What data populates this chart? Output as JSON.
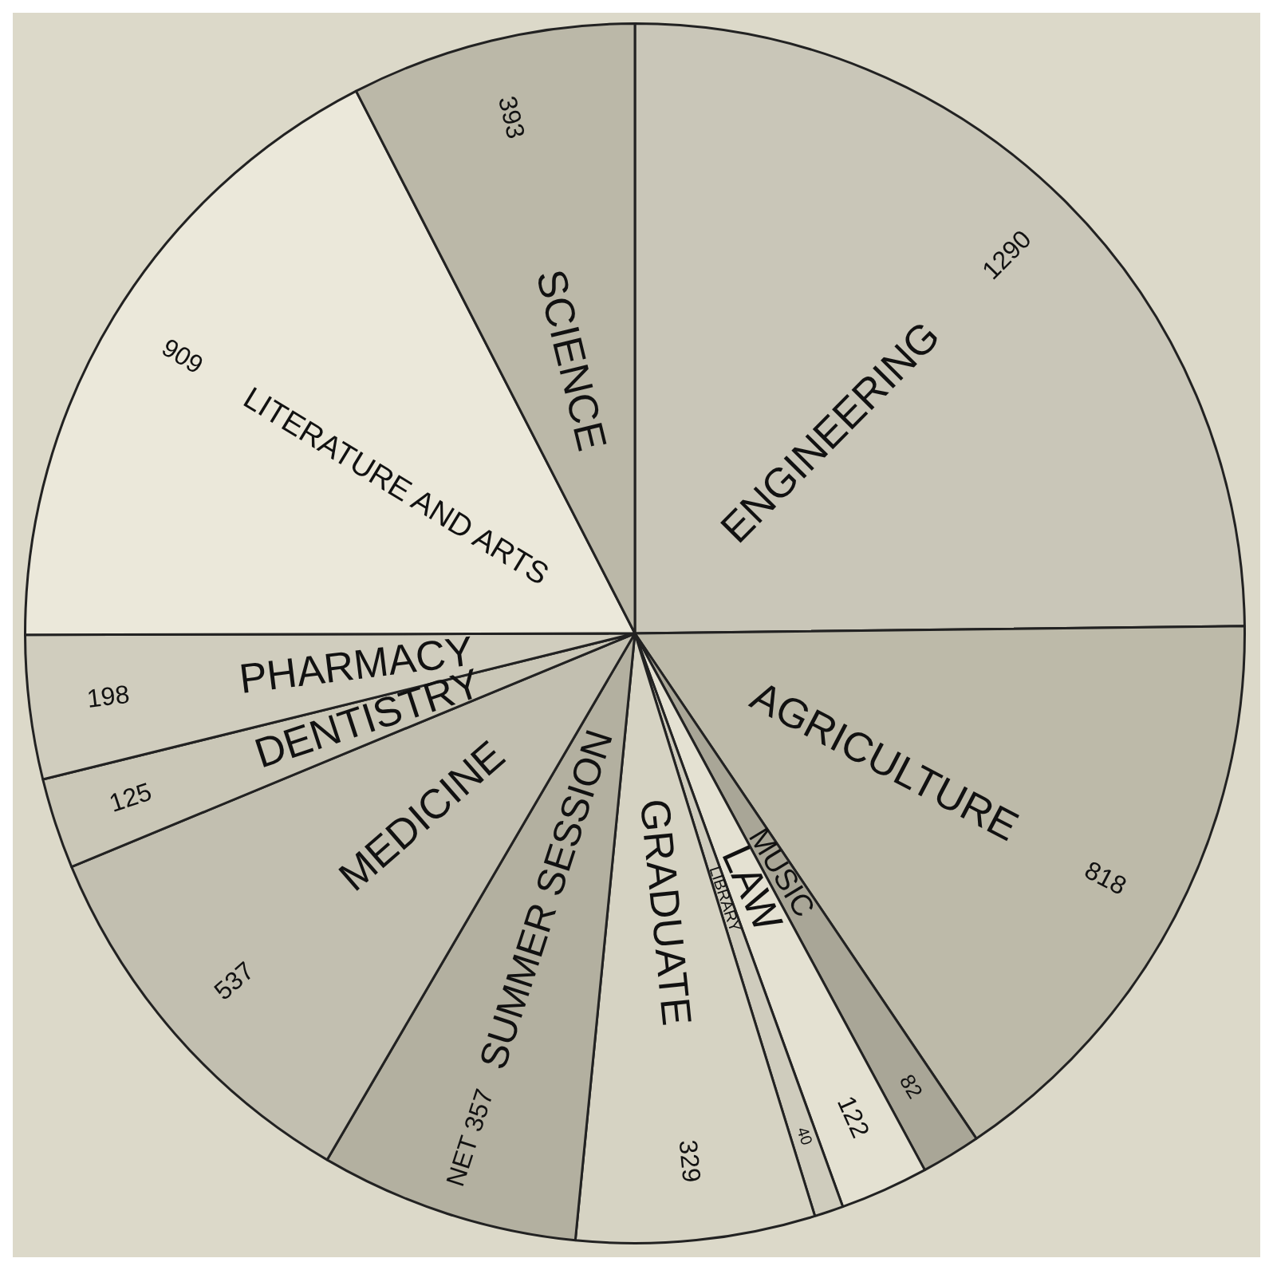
{
  "chart_data": {
    "type": "pie",
    "categories": [
      "ENGINEERING",
      "AGRICULTURE",
      "MUSIC",
      "LAW",
      "LIBRARY",
      "GRADUATE",
      "SUMMER SESSION",
      "MEDICINE",
      "DENTISTRY",
      "PHARMACY",
      "LITERATURE AND ARTS",
      "SCIENCE"
    ],
    "values": [
      1290,
      818,
      82,
      122,
      40,
      329,
      357,
      537,
      125,
      198,
      909,
      393
    ],
    "value_labels": [
      "1290",
      "818",
      "82",
      "122",
      "40",
      "329",
      "NET 357",
      "537",
      "125",
      "198",
      "909",
      "393"
    ],
    "colors": [
      "#c9c6b8",
      "#bdbaa9",
      "#a9a697",
      "#e4e1d2",
      "#cfccbd",
      "#d6d3c3",
      "#b3b0a0",
      "#c2bfb0",
      "#cac7b7",
      "#d0cdbe",
      "#ebe8da",
      "#bbb8a8"
    ],
    "legend": false
  }
}
